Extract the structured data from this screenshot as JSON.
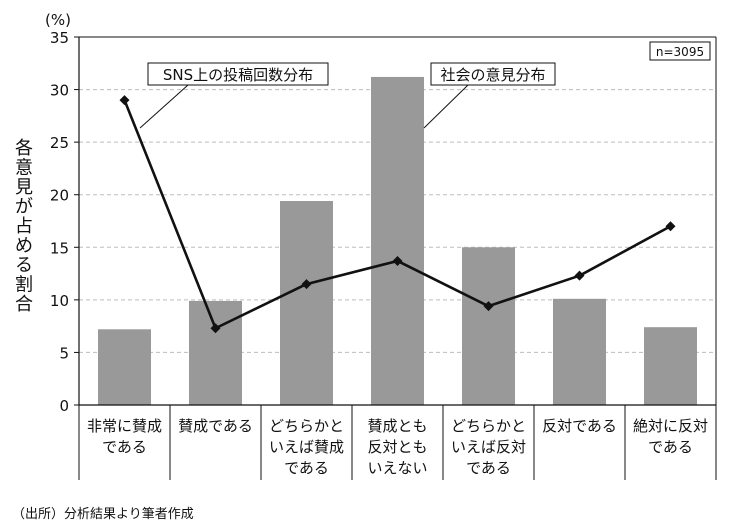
{
  "chart_data": {
    "type": "bar",
    "ylabel": "各意見が占める割合",
    "yunit": "(%)",
    "ylim": [
      0,
      35
    ],
    "yticks": [
      0,
      5,
      10,
      15,
      20,
      25,
      30,
      35
    ],
    "grid": true,
    "categories": [
      [
        "非常に賛成",
        "である"
      ],
      [
        "賛成である"
      ],
      [
        "どちらかと",
        "いえば賛成",
        "である"
      ],
      [
        "賛成とも",
        "反対とも",
        "いえない"
      ],
      [
        "どちらかと",
        "いえば反対",
        "である"
      ],
      [
        "反対である"
      ],
      [
        "絶対に反対",
        "である"
      ]
    ],
    "series": [
      {
        "name": "社会の意見分布",
        "kind": "bar",
        "color": "#999999",
        "values": [
          7.2,
          9.9,
          19.4,
          31.2,
          15.0,
          10.1,
          7.4
        ]
      },
      {
        "name": "SNS上の投稿回数分布",
        "kind": "line",
        "color": "#111111",
        "values": [
          29.0,
          7.3,
          11.5,
          13.7,
          9.4,
          12.3,
          17.0
        ]
      }
    ],
    "annotation": "n=3095"
  },
  "source": "（出所）分析結果より筆者作成"
}
